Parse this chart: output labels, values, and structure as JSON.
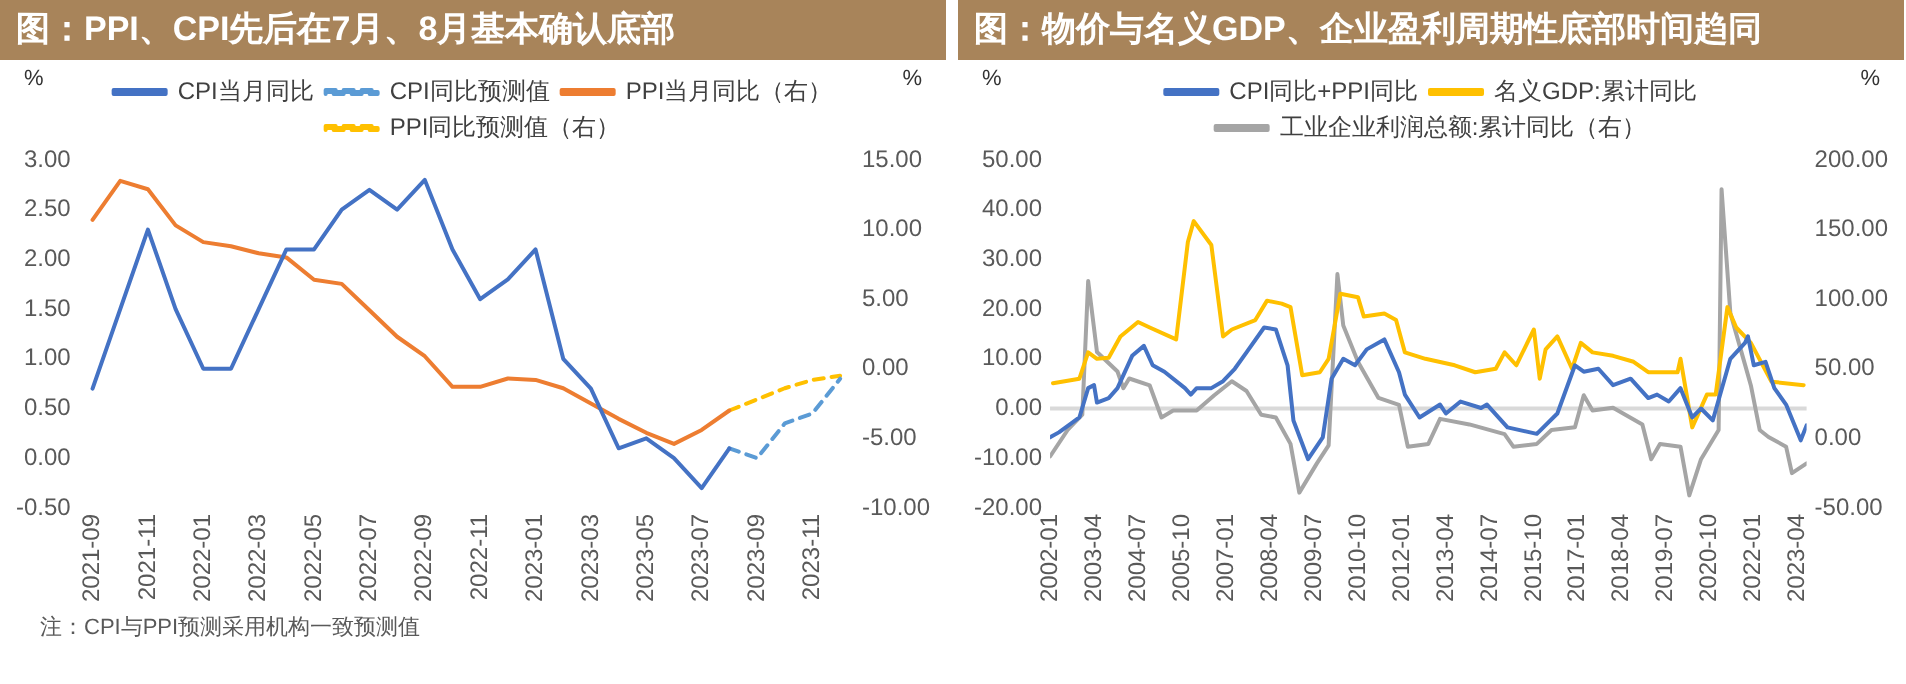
{
  "chart_data": [
    {
      "type": "line",
      "title": "图：PPI、CPI先后在7月、8月基本确认底部",
      "ylabel": "%",
      "y2label": "%",
      "categories": [
        "2021-09",
        null,
        "2021-11",
        null,
        "2022-01",
        null,
        "2022-03",
        null,
        "2022-05",
        null,
        "2022-07",
        null,
        "2022-09",
        null,
        "2022-11",
        null,
        "2023-01",
        null,
        "2023-03",
        null,
        "2023-05",
        null,
        "2023-07",
        null,
        "2023-09",
        null,
        "2023-11",
        null
      ],
      "series": [
        {
          "name": "CPI当月同比",
          "color": "#4472c4",
          "values": [
            0.7,
            1.5,
            2.3,
            1.5,
            0.9,
            0.9,
            1.5,
            2.1,
            2.1,
            2.5,
            2.7,
            2.5,
            2.8,
            2.1,
            1.6,
            1.8,
            2.1,
            1.0,
            0.7,
            0.1,
            0.2,
            0.0,
            -0.3,
            0.1,
            null,
            null,
            null,
            null
          ]
        },
        {
          "name": "CPI同比预测值",
          "color": "#5b9bd5",
          "line_style": "dashed",
          "values": [
            null,
            null,
            null,
            null,
            null,
            null,
            null,
            null,
            null,
            null,
            null,
            null,
            null,
            null,
            null,
            null,
            null,
            null,
            null,
            null,
            null,
            null,
            null,
            0.1,
            0.0,
            0.35,
            0.45,
            0.8
          ]
        },
        {
          "name": "PPI当月同比（右）",
          "color": "#ed7d31",
          "axis": "y2",
          "values": [
            10.7,
            13.5,
            12.9,
            10.3,
            9.1,
            8.8,
            8.3,
            8.0,
            6.4,
            6.1,
            4.2,
            2.3,
            0.9,
            -1.3,
            -1.3,
            -0.7,
            -0.8,
            -1.4,
            -2.5,
            -3.6,
            -4.6,
            -5.4,
            -4.4,
            -3.0,
            null,
            null,
            null,
            null
          ]
        },
        {
          "name": "PPI同比预测值（右）",
          "color": "#ffc000",
          "axis": "y2",
          "line_style": "dashed",
          "values": [
            null,
            null,
            null,
            null,
            null,
            null,
            null,
            null,
            null,
            null,
            null,
            null,
            null,
            null,
            null,
            null,
            null,
            null,
            null,
            null,
            null,
            null,
            null,
            -3.0,
            -2.2,
            -1.4,
            -0.8,
            -0.5
          ]
        }
      ],
      "ylim": [
        -0.5,
        3
      ],
      "yticks": [
        {
          "value": -0.5,
          "label": "-0.50"
        },
        {
          "value": 0,
          "label": "0.00"
        },
        {
          "value": 0.5,
          "label": "0.50"
        },
        {
          "value": 1,
          "label": "1.00"
        },
        {
          "value": 1.5,
          "label": "1.50"
        },
        {
          "value": 2,
          "label": "2.00"
        },
        {
          "value": 2.5,
          "label": "2.50"
        },
        {
          "value": 3,
          "label": "3.00"
        }
      ],
      "y2lim": [
        -10,
        15
      ],
      "y2ticks": [
        {
          "value": -10,
          "label": "-10.00"
        },
        {
          "value": -5,
          "label": "-5.00"
        },
        {
          "value": 0,
          "label": "0.00"
        },
        {
          "value": 5,
          "label": "5.00"
        },
        {
          "value": 10,
          "label": "10.00"
        },
        {
          "value": 15,
          "label": "15.00"
        }
      ],
      "legend": "top",
      "marker": "none",
      "annotations": [
        "注：CPI与PPI预测采用机构一致预测值"
      ]
    },
    {
      "type": "line",
      "title": "图：物价与名义GDP、企业盈利周期性底部时间趋同",
      "ylabel": "%",
      "y2label": "%",
      "series": [
        {
          "name": "CPI同比+PPI同比",
          "color": "#4472c4",
          "x": [
            "2002-01",
            "2002-04",
            "2002-08",
            "2002-11",
            "2003-02",
            "2003-04",
            "2003-05",
            "2003-09",
            "2003-12",
            "2004-05",
            "2004-09",
            "2004-12",
            "2005-04",
            "2005-11",
            "2006-01",
            "2006-03",
            "2006-08",
            "2006-12",
            "2007-04",
            "2007-08",
            "2008-02",
            "2008-06",
            "2008-10",
            "2008-12",
            "2009-05",
            "2009-10",
            "2010-01",
            "2010-05",
            "2010-09",
            "2011-01",
            "2011-07",
            "2011-12",
            "2012-02",
            "2012-07",
            "2013-02",
            "2013-04",
            "2013-09",
            "2014-04",
            "2014-06",
            "2015-01",
            "2015-11",
            "2016-06",
            "2016-12",
            "2017-03",
            "2017-08",
            "2018-01",
            "2018-07",
            "2019-01",
            "2019-04",
            "2019-08",
            "2019-12",
            "2020-04",
            "2020-07",
            "2020-11",
            "2021-05",
            "2021-10",
            "2021-11",
            "2022-01",
            "2022-05",
            "2022-08",
            "2022-12",
            "2023-05",
            "2023-07"
          ],
          "values": [
            -5.8,
            -4.8,
            -3.1,
            -1.8,
            4.1,
            4.7,
            1.2,
            2.1,
            4.1,
            10.6,
            12.6,
            8.7,
            7.4,
            4.1,
            2.8,
            4.1,
            4.1,
            5.5,
            8.0,
            11.3,
            16.3,
            15.9,
            8.7,
            -2.4,
            -10.2,
            -5.8,
            6.0,
            10.0,
            8.7,
            11.9,
            13.9,
            7.3,
            2.8,
            -1.8,
            0.8,
            -1.0,
            1.4,
            0.1,
            0.8,
            -3.8,
            -5.1,
            -1.0,
            8.7,
            7.4,
            8.0,
            4.7,
            6.0,
            2.1,
            2.8,
            1.4,
            4.1,
            -1.8,
            0.0,
            -2.4,
            10.0,
            13.2,
            14.5,
            8.7,
            9.4,
            4.1,
            0.8,
            -6.4,
            -3.4
          ]
        },
        {
          "name": "名义GDP:累计同比",
          "color": "#ffc000",
          "x": [
            "2002-02",
            "2002-11",
            "2003-02",
            "2003-05",
            "2003-09",
            "2004-01",
            "2004-07",
            "2004-11",
            "2005-08",
            "2005-12",
            "2006-02",
            "2006-08",
            "2006-12",
            "2007-03",
            "2007-11",
            "2008-03",
            "2008-08",
            "2008-11",
            "2009-03",
            "2009-09",
            "2009-12",
            "2010-04",
            "2010-10",
            "2010-12",
            "2011-07",
            "2011-11",
            "2012-02",
            "2012-09",
            "2013-07",
            "2014-02",
            "2014-09",
            "2014-12",
            "2015-04",
            "2015-10",
            "2015-12",
            "2016-02",
            "2016-06",
            "2016-11",
            "2017-02",
            "2017-06",
            "2018-01",
            "2018-08",
            "2019-01",
            "2019-11",
            "2019-12",
            "2020-04",
            "2020-09",
            "2020-12",
            "2021-04",
            "2021-07",
            "2021-12",
            "2022-07",
            "2023-06"
          ],
          "values": [
            5.1,
            6.0,
            11.3,
            10.0,
            10.2,
            14.5,
            17.4,
            16.3,
            13.9,
            33.5,
            37.7,
            32.9,
            14.5,
            15.9,
            17.8,
            21.7,
            21.1,
            20.4,
            6.7,
            7.3,
            10.0,
            23.1,
            22.4,
            18.5,
            19.1,
            17.8,
            11.3,
            10.0,
            8.7,
            7.3,
            8.0,
            11.3,
            8.7,
            15.9,
            6.0,
            11.9,
            14.5,
            8.0,
            13.2,
            11.3,
            10.6,
            9.4,
            7.3,
            7.3,
            10.0,
            -3.8,
            2.8,
            2.8,
            20.4,
            16.3,
            13.2,
            5.4,
            4.7
          ]
        },
        {
          "name": "工业企业利润总额:累计同比（右）",
          "color": "#a5a5a5",
          "axis": "y2",
          "x": [
            "2002-01",
            "2002-07",
            "2002-12",
            "2003-02",
            "2003-05",
            "2003-12",
            "2004-02",
            "2004-04",
            "2004-11",
            "2005-03",
            "2005-07",
            "2006-03",
            "2006-09",
            "2007-03",
            "2007-08",
            "2008-01",
            "2008-06",
            "2008-11",
            "2009-02",
            "2009-08",
            "2009-12",
            "2010-03",
            "2010-05",
            "2010-10",
            "2011-05",
            "2011-12",
            "2012-03",
            "2012-10",
            "2013-02",
            "2013-12",
            "2014-12",
            "2015-03",
            "2015-11",
            "2016-04",
            "2016-12",
            "2017-03",
            "2017-06",
            "2018-01",
            "2018-11",
            "2019-02",
            "2019-05",
            "2019-12",
            "2020-03",
            "2020-07",
            "2021-01",
            "2021-02",
            "2021-05",
            "2021-10",
            "2021-12",
            "2022-03",
            "2022-06",
            "2022-12",
            "2023-02",
            "2023-07"
          ],
          "values": [
            -13,
            6,
            17,
            113,
            62,
            48,
            36,
            43,
            38,
            15,
            20,
            20,
            31,
            41,
            34,
            17,
            15,
            -4,
            -39,
            -18,
            -5,
            118,
            81,
            55,
            29,
            24,
            -6,
            -4,
            14,
            10,
            3,
            -6,
            -4,
            6,
            8,
            31,
            20,
            22,
            10,
            -15,
            -4,
            -6,
            -41,
            -15,
            6,
            179,
            90,
            53,
            38,
            6,
            1,
            -6,
            -25,
            -18
          ]
        }
      ],
      "xlim": [
        "2002-01",
        "2023-07"
      ],
      "xticks": [
        "2002-01",
        "2003-04",
        "2004-07",
        "2005-10",
        "2007-01",
        "2008-04",
        "2009-07",
        "2010-10",
        "2012-01",
        "2013-04",
        "2014-07",
        "2015-10",
        "2017-01",
        "2018-04",
        "2019-07",
        "2020-10",
        "2022-01",
        "2023-04"
      ],
      "ylim": [
        -20,
        50
      ],
      "yticks": [
        {
          "value": -20,
          "label": "-20.00"
        },
        {
          "value": -10,
          "label": "-10.00"
        },
        {
          "value": 0,
          "label": "0.00"
        },
        {
          "value": 10,
          "label": "10.00"
        },
        {
          "value": 20,
          "label": "20.00"
        },
        {
          "value": 30,
          "label": "30.00"
        },
        {
          "value": 40,
          "label": "40.00"
        },
        {
          "value": 50,
          "label": "50.00"
        }
      ],
      "y2lim": [
        -50,
        200
      ],
      "y2ticks": [
        {
          "value": -50,
          "label": "-50.00"
        },
        {
          "value": 0,
          "label": "0.00"
        },
        {
          "value": 50,
          "label": "50.00"
        },
        {
          "value": 100,
          "label": "100.00"
        },
        {
          "value": 150,
          "label": "150.00"
        },
        {
          "value": 200,
          "label": "200.00"
        }
      ],
      "ref_lines": [
        {
          "axis": "y",
          "value": 0,
          "color": "#d9d9d9"
        }
      ],
      "legend": "top",
      "marker": "none"
    }
  ]
}
